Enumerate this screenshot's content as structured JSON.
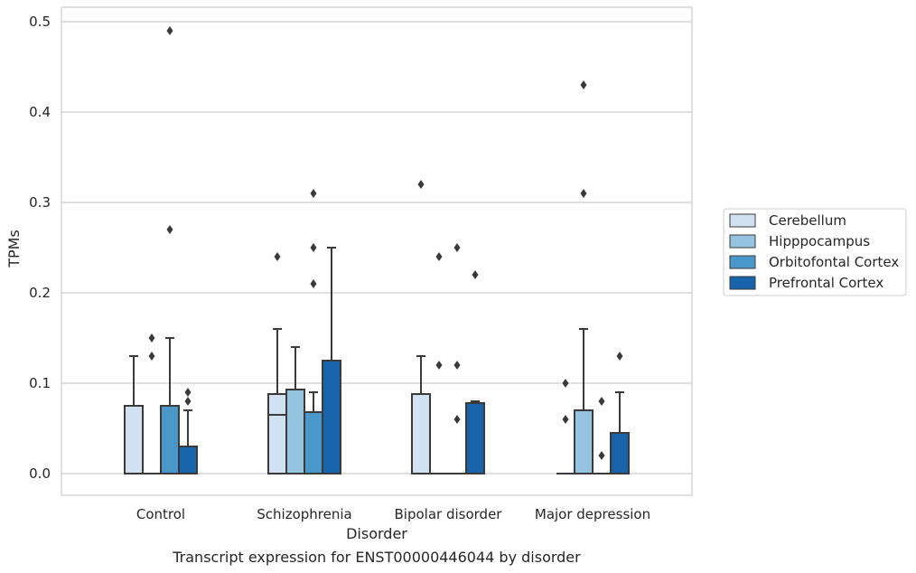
{
  "chart_data": {
    "type": "box",
    "xlabel": "Disorder",
    "ylabel": "TPMs",
    "caption": "Transcript expression for ENST00000446044 by disorder",
    "ylim": [
      -0.024,
      0.515
    ],
    "yticks": [
      "0.0",
      "0.1",
      "0.2",
      "0.3",
      "0.4",
      "0.5"
    ],
    "ytick_values": [
      0,
      0.1,
      0.2,
      0.3,
      0.4,
      0.5
    ],
    "grid": "horizontal",
    "legend_position": "right",
    "categories": [
      "Control",
      "Schizophrenia",
      "Bipolar disorder",
      "Major depression"
    ],
    "series": [
      {
        "name": "Cerebellum",
        "color": "#d0e1f2"
      },
      {
        "name": "Hipppocampus",
        "color": "#94c4df"
      },
      {
        "name": "Orbitofontal Cortex",
        "color": "#4a98c9"
      },
      {
        "name": "Prefrontal Cortex",
        "color": "#1764ab"
      }
    ],
    "boxes": [
      [
        {
          "q1": 0,
          "median": 0,
          "q3": 0.075,
          "whislo": 0,
          "whishi": 0.13,
          "fliers": []
        },
        {
          "q1": 0,
          "median": 0,
          "q3": 0,
          "whislo": 0,
          "whishi": 0,
          "fliers": [
            0.13,
            0.15
          ]
        },
        {
          "q1": 0,
          "median": 0,
          "q3": 0.075,
          "whislo": 0,
          "whishi": 0.15,
          "fliers": [
            0.27,
            0.49
          ]
        },
        {
          "q1": 0,
          "median": 0,
          "q3": 0.03,
          "whislo": 0,
          "whishi": 0.07,
          "fliers": [
            0.08,
            0.09
          ]
        }
      ],
      [
        {
          "q1": 0,
          "median": 0.065,
          "q3": 0.088,
          "whislo": 0,
          "whishi": 0.16,
          "fliers": [
            0.24
          ]
        },
        {
          "q1": 0,
          "median": 0,
          "q3": 0.093,
          "whislo": 0,
          "whishi": 0.14,
          "fliers": []
        },
        {
          "q1": 0,
          "median": 0,
          "q3": 0.068,
          "whislo": 0,
          "whishi": 0.09,
          "fliers": [
            0.21,
            0.25,
            0.31
          ]
        },
        {
          "q1": 0,
          "median": 0,
          "q3": 0.125,
          "whislo": 0,
          "whishi": 0.25,
          "fliers": []
        }
      ],
      [
        {
          "q1": 0,
          "median": 0,
          "q3": 0.088,
          "whislo": 0,
          "whishi": 0.13,
          "fliers": [
            0.32
          ]
        },
        {
          "q1": 0,
          "median": 0,
          "q3": 0,
          "whislo": 0,
          "whishi": 0,
          "fliers": [
            0.12,
            0.24
          ]
        },
        {
          "q1": 0,
          "median": 0,
          "q3": 0,
          "whislo": 0,
          "whishi": 0,
          "fliers": [
            0.06,
            0.12,
            0.25
          ]
        },
        {
          "q1": 0,
          "median": 0,
          "q3": 0.078,
          "whislo": 0,
          "whishi": 0.08,
          "fliers": [
            0.22
          ]
        }
      ],
      [
        {
          "q1": 0,
          "median": 0,
          "q3": 0,
          "whislo": 0,
          "whishi": 0,
          "fliers": [
            0.06,
            0.1
          ]
        },
        {
          "q1": 0,
          "median": 0,
          "q3": 0.07,
          "whislo": 0,
          "whishi": 0.16,
          "fliers": [
            0.31,
            0.43
          ]
        },
        {
          "q1": 0,
          "median": 0,
          "q3": 0,
          "whislo": 0,
          "whishi": 0,
          "fliers": [
            0.02,
            0.08
          ]
        },
        {
          "q1": 0,
          "median": 0,
          "q3": 0.045,
          "whislo": 0,
          "whishi": 0.09,
          "fliers": [
            0.13
          ]
        }
      ]
    ]
  }
}
